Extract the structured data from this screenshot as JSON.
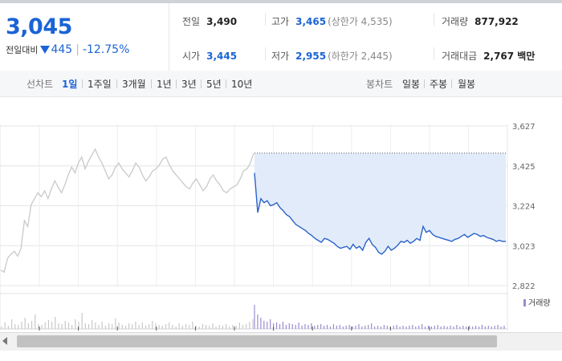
{
  "summary": {
    "price": "3,045",
    "delta_label": "전일대비",
    "delta_value": "445",
    "delta_pct": "-12.75%",
    "prev_close_label": "전일",
    "prev_close": "3,490",
    "open_label": "시가",
    "open": "3,445",
    "high_label": "고가",
    "high": "3,465",
    "upper_limit": "(상한가 4,535)",
    "low_label": "저가",
    "low": "2,955",
    "lower_limit": "(하한가 2,445)",
    "volume_label": "거래량",
    "volume": "877,922",
    "amount_label": "거래대금",
    "amount": "2,767 백만"
  },
  "tabs": {
    "line_label": "선차트",
    "periods": [
      "1일",
      "1주일",
      "3개월",
      "1년",
      "3년",
      "5년",
      "10년"
    ],
    "active_period": "1일",
    "candle_label": "봉차트",
    "candles": [
      "일봉",
      "주봉",
      "월봉"
    ]
  },
  "chart_data": {
    "type": "line",
    "ylim": [
      2822,
      3627
    ],
    "yticks": [
      "3,627",
      "3,425",
      "3,224",
      "3,023",
      "2,822"
    ],
    "reference_price": 3490,
    "prev_day_color": "#c9c9c9",
    "today_color": "#2a63c9",
    "fill_color": "#e2ebf9",
    "volume_legend": "거래량",
    "volume_color": "#9c8ad0",
    "prev_day_series": [
      2900,
      2890,
      2960,
      2980,
      2995,
      2970,
      3010,
      3150,
      3120,
      3230,
      3260,
      3290,
      3270,
      3300,
      3260,
      3310,
      3350,
      3320,
      3290,
      3330,
      3380,
      3420,
      3390,
      3440,
      3470,
      3410,
      3450,
      3480,
      3510,
      3470,
      3440,
      3400,
      3360,
      3380,
      3420,
      3440,
      3410,
      3390,
      3370,
      3400,
      3440,
      3420,
      3380,
      3350,
      3370,
      3400,
      3410,
      3430,
      3460,
      3470,
      3430,
      3400,
      3380,
      3360,
      3340,
      3320,
      3310,
      3340,
      3360,
      3330,
      3300,
      3320,
      3360,
      3380,
      3350,
      3330,
      3300,
      3290,
      3310,
      3320,
      3330,
      3360,
      3400,
      3410,
      3440,
      3490
    ],
    "today_series": [
      3390,
      3190,
      3260,
      3240,
      3250,
      3225,
      3230,
      3240,
      3215,
      3200,
      3180,
      3170,
      3150,
      3130,
      3120,
      3110,
      3100,
      3085,
      3075,
      3060,
      3050,
      3040,
      3060,
      3055,
      3045,
      3035,
      3020,
      3010,
      3015,
      3020,
      3005,
      3030,
      3010,
      3020,
      3000,
      3040,
      3060,
      3030,
      3015,
      2990,
      2980,
      2995,
      3020,
      3000,
      3010,
      3025,
      3045,
      3040,
      3050,
      3035,
      3045,
      3060,
      3050,
      3120,
      3090,
      3100,
      3080,
      3070,
      3065,
      3060,
      3055,
      3050,
      3045,
      3055,
      3060,
      3070,
      3080,
      3065,
      3075,
      3085,
      3080,
      3070,
      3075,
      3065,
      3060,
      3055,
      3045,
      3050,
      3045,
      3045
    ],
    "prev_day_volume": [
      3,
      8,
      4,
      12,
      6,
      5,
      9,
      14,
      7,
      10,
      18,
      6,
      5,
      8,
      11,
      9,
      15,
      7,
      6,
      10,
      8,
      5,
      12,
      9,
      20,
      7,
      6,
      11,
      8,
      5,
      9,
      4,
      7,
      6,
      13,
      8,
      5,
      4,
      7,
      6,
      9,
      5,
      8,
      4,
      6,
      10,
      7,
      5,
      4,
      6,
      8,
      5,
      3,
      7,
      4,
      6,
      5,
      9,
      4,
      3,
      6,
      5,
      4,
      7,
      3,
      5,
      4,
      6,
      3,
      5,
      4,
      8,
      5,
      6,
      9,
      12
    ],
    "today_volume": [
      30,
      18,
      14,
      10,
      9,
      12,
      7,
      8,
      6,
      9,
      5,
      7,
      6,
      5,
      8,
      4,
      6,
      5,
      7,
      4,
      5,
      6,
      4,
      5,
      3,
      6,
      4,
      5,
      3,
      4,
      5,
      3,
      4,
      6,
      3,
      4,
      5,
      7,
      3,
      4,
      3,
      5,
      4,
      3,
      4,
      5,
      3,
      4,
      3,
      4,
      5,
      3,
      4,
      6,
      3,
      4,
      3,
      4,
      5,
      3,
      4,
      3,
      4,
      3,
      5,
      3,
      4,
      3,
      4,
      3,
      4,
      3,
      5,
      3,
      4,
      3,
      4,
      5,
      3,
      4
    ]
  }
}
